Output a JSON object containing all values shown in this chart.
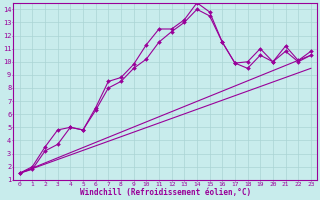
{
  "xlabel": "Windchill (Refroidissement éolien,°C)",
  "background_color": "#c8ecec",
  "grid_color": "#aad4d4",
  "line_color": "#990099",
  "xlim": [
    -0.5,
    23.5
  ],
  "ylim": [
    1,
    14.5
  ],
  "xticks": [
    0,
    1,
    2,
    3,
    4,
    5,
    6,
    7,
    8,
    9,
    10,
    11,
    12,
    13,
    14,
    15,
    16,
    17,
    18,
    19,
    20,
    21,
    22,
    23
  ],
  "yticks": [
    1,
    2,
    3,
    4,
    5,
    6,
    7,
    8,
    9,
    10,
    11,
    12,
    13,
    14
  ],
  "series1_x": [
    0,
    1,
    2,
    3,
    4,
    5,
    6,
    7,
    8,
    9,
    10,
    11,
    12,
    13,
    14,
    15,
    16,
    17,
    18,
    19,
    20,
    21,
    22,
    23
  ],
  "series1_y": [
    1.5,
    2.0,
    3.5,
    4.8,
    5.0,
    4.8,
    6.5,
    8.5,
    8.8,
    9.8,
    11.3,
    12.5,
    12.5,
    13.2,
    14.5,
    13.8,
    11.5,
    9.9,
    10.0,
    11.0,
    10.0,
    11.2,
    10.1,
    10.8
  ],
  "series2_x": [
    0,
    1,
    2,
    3,
    4,
    5,
    6,
    7,
    8,
    9,
    10,
    11,
    12,
    13,
    14,
    15,
    16,
    17,
    18,
    19,
    20,
    21,
    22,
    23
  ],
  "series2_y": [
    1.5,
    1.8,
    3.2,
    3.7,
    5.0,
    4.8,
    6.3,
    8.0,
    8.5,
    9.5,
    10.2,
    11.5,
    12.3,
    13.0,
    14.0,
    13.5,
    11.5,
    9.9,
    9.5,
    10.5,
    10.0,
    10.8,
    10.0,
    10.5
  ],
  "series3_x": [
    0,
    23
  ],
  "series3_y": [
    1.5,
    10.5
  ],
  "series4_x": [
    0,
    23
  ],
  "series4_y": [
    1.5,
    9.5
  ],
  "marker": "D",
  "markersize": 2.0,
  "linewidth": 0.8
}
